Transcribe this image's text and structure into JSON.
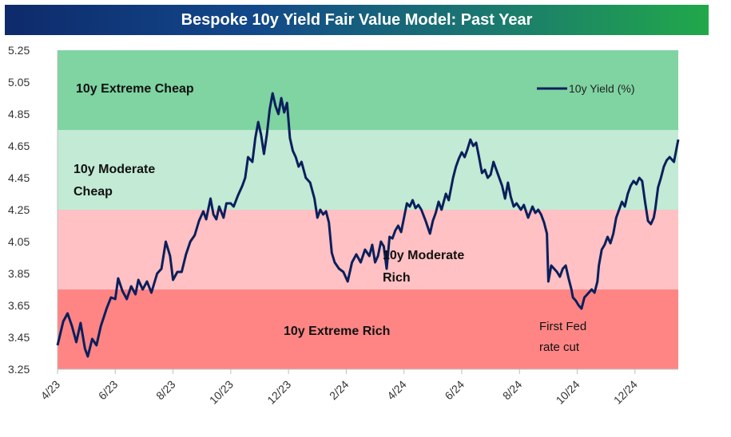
{
  "chart_data": {
    "type": "line",
    "title": "Bespoke 10y Yield Fair Value Model: Past Year",
    "xlabel": "",
    "ylabel": "",
    "ylim": [
      3.25,
      5.25
    ],
    "yticks": [
      "5.25",
      "5.05",
      "4.85",
      "4.65",
      "4.45",
      "4.25",
      "4.05",
      "3.85",
      "3.65",
      "3.45",
      "3.25"
    ],
    "xticks": [
      "4/23",
      "6/23",
      "8/23",
      "10/23",
      "12/23",
      "2/24",
      "4/24",
      "6/24",
      "8/24",
      "10/24",
      "12/24"
    ],
    "xlim_months": [
      0,
      20.8
    ],
    "zones": [
      {
        "name": "10y Extreme Cheap",
        "from": 4.75,
        "to": 5.25,
        "color": "#7fd4a2",
        "label_lines": [
          "10y Extreme Cheap"
        ]
      },
      {
        "name": "10y Moderate Cheap",
        "from": 4.25,
        "to": 4.75,
        "color": "#c2ead4",
        "label_lines": [
          "10y Moderate",
          "Cheap"
        ]
      },
      {
        "name": "10y Moderate Rich",
        "from": 3.75,
        "to": 4.25,
        "color": "#ffc1c3",
        "label_lines": [
          "10y Moderate",
          "Rich"
        ]
      },
      {
        "name": "10y Extreme Rich",
        "from": 3.25,
        "to": 3.75,
        "color": "#ff8585",
        "label_lines": [
          "10y Extreme Rich"
        ]
      }
    ],
    "annotation": [
      "First Fed",
      "rate cut"
    ],
    "series": [
      {
        "name": "10y Yield (%)",
        "color": "#0b1f5c",
        "points": [
          [
            0.0,
            3.4
          ],
          [
            0.2,
            3.55
          ],
          [
            0.35,
            3.6
          ],
          [
            0.5,
            3.52
          ],
          [
            0.65,
            3.42
          ],
          [
            0.8,
            3.54
          ],
          [
            0.95,
            3.38
          ],
          [
            1.05,
            3.33
          ],
          [
            1.2,
            3.44
          ],
          [
            1.35,
            3.4
          ],
          [
            1.5,
            3.52
          ],
          [
            1.7,
            3.63
          ],
          [
            1.85,
            3.7
          ],
          [
            2.0,
            3.69
          ],
          [
            2.1,
            3.82
          ],
          [
            2.25,
            3.74
          ],
          [
            2.4,
            3.69
          ],
          [
            2.55,
            3.77
          ],
          [
            2.7,
            3.72
          ],
          [
            2.8,
            3.81
          ],
          [
            2.95,
            3.75
          ],
          [
            3.1,
            3.8
          ],
          [
            3.25,
            3.73
          ],
          [
            3.45,
            3.85
          ],
          [
            3.6,
            3.88
          ],
          [
            3.75,
            4.05
          ],
          [
            3.9,
            3.96
          ],
          [
            4.0,
            3.81
          ],
          [
            4.15,
            3.86
          ],
          [
            4.3,
            3.86
          ],
          [
            4.45,
            3.97
          ],
          [
            4.6,
            4.05
          ],
          [
            4.75,
            4.09
          ],
          [
            4.9,
            4.18
          ],
          [
            5.05,
            4.24
          ],
          [
            5.15,
            4.19
          ],
          [
            5.3,
            4.32
          ],
          [
            5.4,
            4.22
          ],
          [
            5.5,
            4.19
          ],
          [
            5.6,
            4.27
          ],
          [
            5.75,
            4.2
          ],
          [
            5.85,
            4.29
          ],
          [
            6.0,
            4.29
          ],
          [
            6.1,
            4.27
          ],
          [
            6.25,
            4.34
          ],
          [
            6.4,
            4.4
          ],
          [
            6.5,
            4.45
          ],
          [
            6.6,
            4.58
          ],
          [
            6.75,
            4.55
          ],
          [
            6.85,
            4.7
          ],
          [
            6.95,
            4.8
          ],
          [
            7.05,
            4.72
          ],
          [
            7.15,
            4.6
          ],
          [
            7.25,
            4.72
          ],
          [
            7.35,
            4.88
          ],
          [
            7.45,
            4.98
          ],
          [
            7.55,
            4.9
          ],
          [
            7.65,
            4.85
          ],
          [
            7.75,
            4.95
          ],
          [
            7.85,
            4.86
          ],
          [
            7.95,
            4.92
          ],
          [
            8.05,
            4.7
          ],
          [
            8.15,
            4.62
          ],
          [
            8.25,
            4.58
          ],
          [
            8.35,
            4.52
          ],
          [
            8.45,
            4.55
          ],
          [
            8.6,
            4.45
          ],
          [
            8.75,
            4.42
          ],
          [
            8.9,
            4.32
          ],
          [
            9.0,
            4.2
          ],
          [
            9.1,
            4.25
          ],
          [
            9.2,
            4.22
          ],
          [
            9.3,
            4.24
          ],
          [
            9.4,
            4.17
          ],
          [
            9.5,
            3.98
          ],
          [
            9.6,
            3.92
          ],
          [
            9.75,
            3.88
          ],
          [
            9.9,
            3.86
          ],
          [
            10.05,
            3.8
          ],
          [
            10.2,
            3.92
          ],
          [
            10.35,
            3.97
          ],
          [
            10.5,
            3.92
          ],
          [
            10.65,
            4.0
          ],
          [
            10.8,
            3.96
          ],
          [
            10.9,
            4.03
          ],
          [
            11.0,
            3.92
          ],
          [
            11.1,
            3.96
          ],
          [
            11.2,
            4.05
          ],
          [
            11.3,
            4.02
          ],
          [
            11.4,
            3.88
          ],
          [
            11.5,
            4.08
          ],
          [
            11.6,
            4.07
          ],
          [
            11.7,
            4.12
          ],
          [
            11.8,
            4.15
          ],
          [
            11.9,
            4.11
          ],
          [
            12.0,
            4.2
          ],
          [
            12.1,
            4.29
          ],
          [
            12.2,
            4.27
          ],
          [
            12.3,
            4.31
          ],
          [
            12.4,
            4.26
          ],
          [
            12.5,
            4.28
          ],
          [
            12.6,
            4.25
          ],
          [
            12.75,
            4.18
          ],
          [
            12.9,
            4.1
          ],
          [
            13.0,
            4.18
          ],
          [
            13.1,
            4.23
          ],
          [
            13.2,
            4.3
          ],
          [
            13.3,
            4.25
          ],
          [
            13.45,
            4.35
          ],
          [
            13.55,
            4.31
          ],
          [
            13.7,
            4.45
          ],
          [
            13.8,
            4.52
          ],
          [
            13.9,
            4.57
          ],
          [
            14.0,
            4.61
          ],
          [
            14.1,
            4.58
          ],
          [
            14.2,
            4.63
          ],
          [
            14.3,
            4.69
          ],
          [
            14.4,
            4.65
          ],
          [
            14.5,
            4.67
          ],
          [
            14.6,
            4.58
          ],
          [
            14.7,
            4.48
          ],
          [
            14.8,
            4.5
          ],
          [
            14.9,
            4.45
          ],
          [
            15.0,
            4.47
          ],
          [
            15.1,
            4.55
          ],
          [
            15.2,
            4.5
          ],
          [
            15.3,
            4.45
          ],
          [
            15.4,
            4.4
          ],
          [
            15.5,
            4.32
          ],
          [
            15.6,
            4.42
          ],
          [
            15.7,
            4.33
          ],
          [
            15.8,
            4.27
          ],
          [
            15.9,
            4.29
          ],
          [
            16.05,
            4.25
          ],
          [
            16.15,
            4.28
          ],
          [
            16.3,
            4.2
          ],
          [
            16.45,
            4.27
          ],
          [
            16.55,
            4.23
          ],
          [
            16.65,
            4.25
          ],
          [
            16.75,
            4.22
          ],
          [
            16.85,
            4.17
          ],
          [
            16.95,
            4.1
          ],
          [
            17.0,
            3.8
          ],
          [
            17.1,
            3.9
          ],
          [
            17.2,
            3.88
          ],
          [
            17.3,
            3.86
          ],
          [
            17.4,
            3.83
          ],
          [
            17.5,
            3.88
          ],
          [
            17.6,
            3.9
          ],
          [
            17.7,
            3.82
          ],
          [
            17.8,
            3.75
          ],
          [
            17.85,
            3.7
          ],
          [
            17.95,
            3.68
          ],
          [
            18.05,
            3.65
          ],
          [
            18.15,
            3.63
          ],
          [
            18.25,
            3.7
          ],
          [
            18.35,
            3.72
          ],
          [
            18.5,
            3.75
          ],
          [
            18.6,
            3.73
          ],
          [
            18.7,
            3.8
          ],
          [
            18.75,
            3.9
          ],
          [
            18.85,
            4.0
          ],
          [
            18.95,
            4.03
          ],
          [
            19.05,
            4.08
          ],
          [
            19.15,
            4.04
          ],
          [
            19.25,
            4.1
          ],
          [
            19.35,
            4.2
          ],
          [
            19.45,
            4.25
          ],
          [
            19.55,
            4.3
          ],
          [
            19.65,
            4.27
          ],
          [
            19.75,
            4.35
          ],
          [
            19.85,
            4.4
          ],
          [
            19.95,
            4.43
          ],
          [
            20.05,
            4.41
          ],
          [
            20.15,
            4.45
          ],
          [
            20.25,
            4.43
          ],
          [
            20.35,
            4.3
          ],
          [
            20.45,
            4.18
          ],
          [
            20.55,
            4.16
          ],
          [
            20.65,
            4.2
          ],
          [
            20.7,
            4.25
          ],
          [
            20.8,
            4.39
          ],
          [
            20.9,
            4.45
          ],
          [
            21.0,
            4.52
          ],
          [
            21.1,
            4.56
          ],
          [
            21.2,
            4.58
          ],
          [
            21.35,
            4.55
          ],
          [
            21.5,
            4.69
          ]
        ]
      }
    ]
  }
}
